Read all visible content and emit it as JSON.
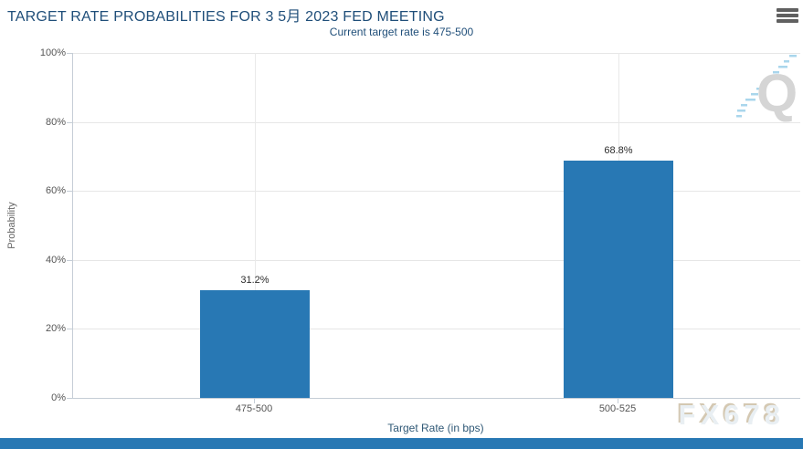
{
  "chart_data": {
    "type": "bar",
    "title": "TARGET RATE PROBABILITIES FOR 3 5月 2023 FED MEETING",
    "subtitle": "Current target rate is 475-500",
    "categories": [
      "475-500",
      "500-525"
    ],
    "values": [
      31.2,
      68.8
    ],
    "value_labels": [
      "31.2%",
      "68.8%"
    ],
    "xlabel": "Target Rate (in bps)",
    "ylabel": "Probability",
    "ylim": [
      0,
      100
    ],
    "yticks": [
      0,
      20,
      40,
      60,
      80,
      100
    ],
    "ytick_labels": [
      "0%",
      "20%",
      "40%",
      "60%",
      "80%",
      "100%"
    ],
    "grid": true,
    "legend": "none",
    "bar_color": "#2878b4"
  },
  "toolbar": {
    "menu_icon": "hamburger-icon"
  },
  "watermarks": {
    "chart_logo": "Q",
    "brand": "FX678"
  },
  "colors": {
    "title_text": "#1f4e79",
    "bar": "#2878b4",
    "gridline": "#e6e6e6",
    "axis_line": "#c5cdd6",
    "axis_text": "#555555",
    "footer_bar": "#2878b4",
    "logo_streaks": "#a9d6ec",
    "logo_letter": "#d5d5d5"
  }
}
